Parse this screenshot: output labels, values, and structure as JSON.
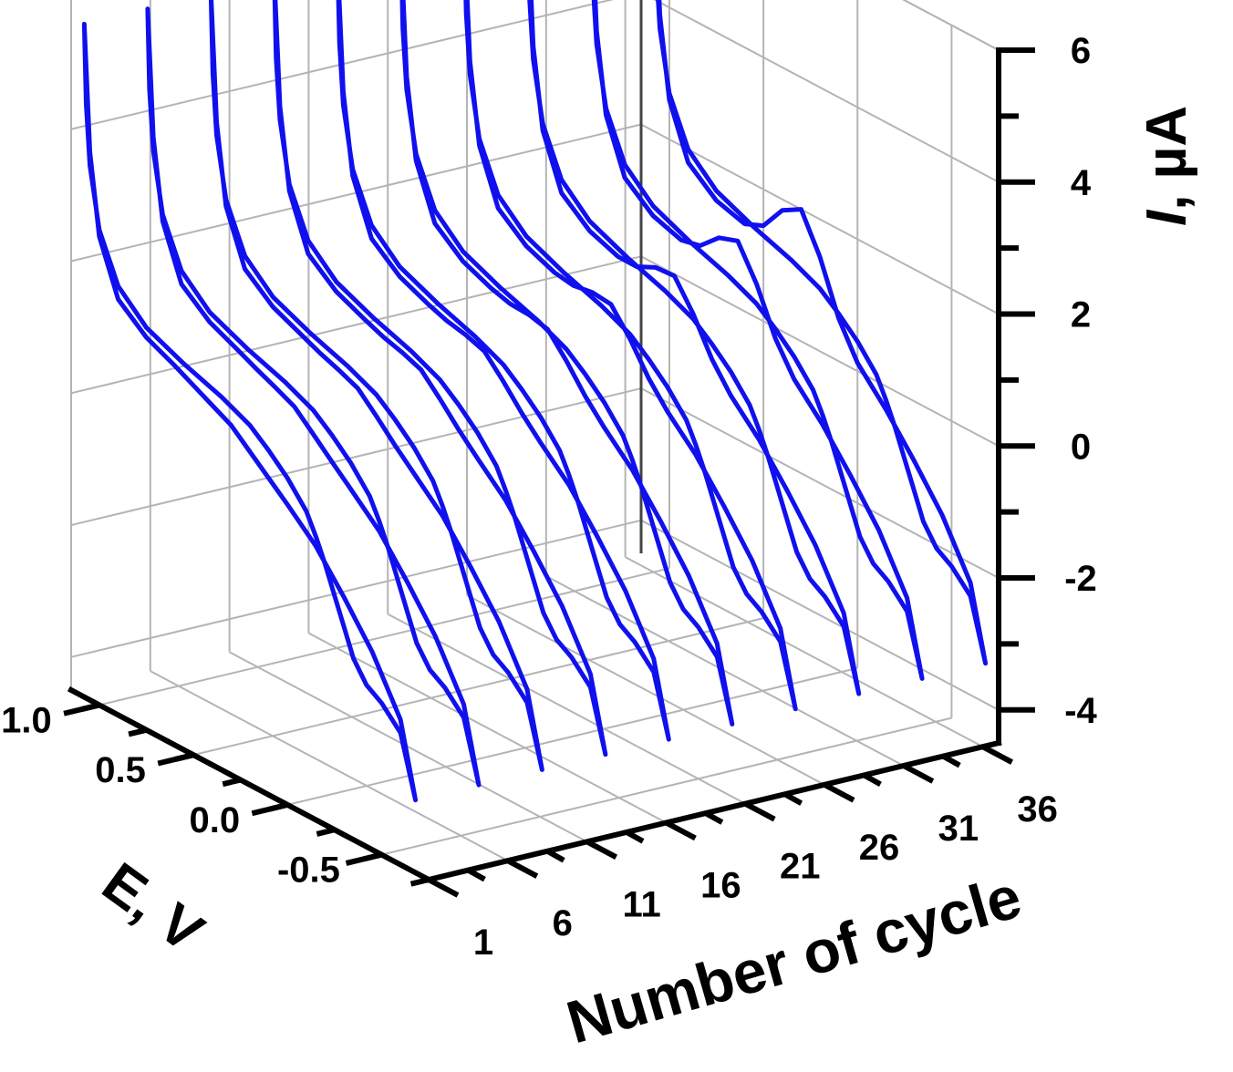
{
  "chart_data": {
    "type": "line",
    "subtype": "3d-waterfall",
    "title": "",
    "xlabel": "E, V",
    "ylabel": "Number of cycle",
    "zlabel_italic": "I",
    "zlabel_rest": ", µA",
    "x_range": [
      1.15,
      -0.75
    ],
    "x_ticks": [
      1.0,
      0.5,
      0.0,
      -0.5
    ],
    "x_tick_labels": [
      "1.0",
      "0.5",
      "0.0",
      "-0.5"
    ],
    "y_range": [
      1,
      37
    ],
    "y_ticks": [
      1,
      6,
      11,
      16,
      21,
      26,
      31,
      36
    ],
    "y_tick_labels": [
      "1",
      "6",
      "11",
      "16",
      "21",
      "26",
      "31",
      "36"
    ],
    "z_range": [
      -4.5,
      6
    ],
    "z_ticks": [
      -4,
      -2,
      0,
      2,
      4,
      6
    ],
    "z_tick_labels": [
      "-4",
      "-2",
      "0",
      "2",
      "4",
      "6"
    ],
    "grid": true,
    "line_color": "#1010ee",
    "series_cycles": [
      1,
      5,
      9,
      13,
      17,
      21,
      25,
      29,
      33,
      37
    ],
    "forward_scan": {
      "E": [
        1.08,
        1.07,
        1.05,
        1.0,
        0.9,
        0.75,
        0.55,
        0.35,
        0.2,
        0.1,
        0.0,
        -0.1,
        -0.15,
        -0.2,
        -0.25,
        -0.3,
        -0.35,
        -0.42,
        -0.5,
        -0.6,
        -0.68
      ],
      "I": [
        5.7,
        4.5,
        3.6,
        2.7,
        2.0,
        1.6,
        1.35,
        1.15,
        0.95,
        0.72,
        0.45,
        0.1,
        -0.2,
        -0.55,
        -0.95,
        -1.35,
        -1.75,
        -2.05,
        -2.2,
        -2.5,
        -3.4
      ]
    },
    "reverse_scan": {
      "E": [
        -0.68,
        -0.6,
        -0.45,
        -0.3,
        -0.15,
        0.0,
        0.1,
        0.2,
        0.3,
        0.4,
        0.5,
        0.6,
        0.75,
        0.9,
        1.0,
        1.05,
        1.08
      ],
      "I": [
        -3.4,
        -2.3,
        -1.5,
        -0.9,
        -0.35,
        0.05,
        0.3,
        0.55,
        0.8,
        0.95,
        1.1,
        1.25,
        1.45,
        1.8,
        2.6,
        3.8,
        5.7
      ]
    },
    "reverse_peak_by_series": [
      0.0,
      0.05,
      0.1,
      0.15,
      0.2,
      0.3,
      0.45,
      0.65,
      0.95,
      1.2
    ]
  }
}
